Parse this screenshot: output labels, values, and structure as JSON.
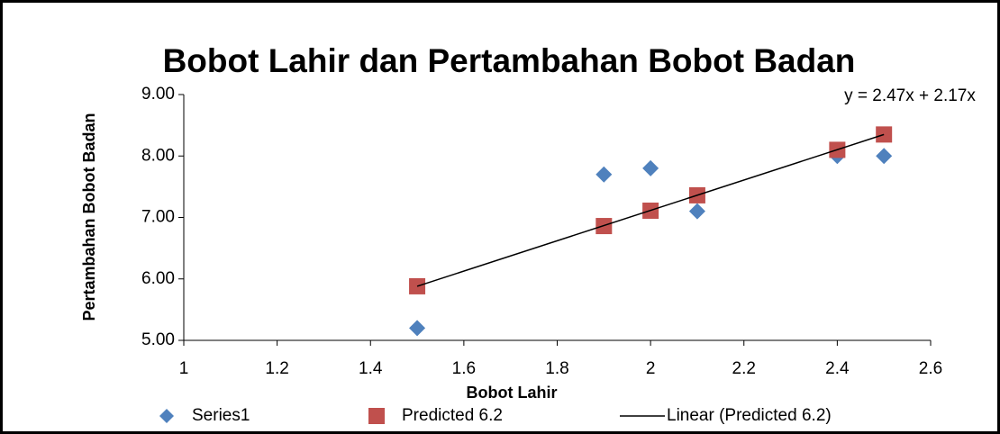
{
  "chart_data": {
    "type": "scatter",
    "title": "Bobot Lahir dan Pertambahan Bobot Badan",
    "x_label": "Bobot Lahir",
    "y_label": "Pertambahan Bobot Badan",
    "annotation": "y = 2.47x + 2.17x",
    "series": [
      {
        "name": "Series1",
        "color": "#4f81bd",
        "marker": "diamond",
        "x": [
          1.5,
          1.9,
          2.0,
          2.1,
          2.4,
          2.5
        ],
        "values": [
          5.2,
          7.7,
          7.8,
          7.1,
          8.0,
          8.0
        ]
      },
      {
        "name": "Predicted 6.2",
        "color": "#c0504d",
        "marker": "square",
        "x": [
          1.5,
          1.9,
          2.0,
          2.1,
          2.4,
          2.5
        ],
        "values": [
          5.88,
          6.86,
          7.11,
          7.36,
          8.1,
          8.35
        ]
      },
      {
        "name": "Linear (Predicted 6.2)",
        "color": "#000000",
        "marker": "line",
        "x": [
          1.5,
          2.5
        ],
        "values": [
          5.88,
          8.35
        ]
      }
    ],
    "xlim": [
      1,
      2.6
    ],
    "xticks": [
      1,
      1.2,
      1.4,
      1.6,
      1.8,
      2,
      2.2,
      2.4,
      2.6
    ],
    "ylim": [
      5,
      9
    ],
    "yticks": [
      {
        "value": 5,
        "label": "5.00"
      },
      {
        "value": 6,
        "label": "6.00"
      },
      {
        "value": 7,
        "label": "7.00"
      },
      {
        "value": 8,
        "label": "8.00"
      },
      {
        "value": 9,
        "label": "9.00"
      }
    ],
    "grid": false
  }
}
